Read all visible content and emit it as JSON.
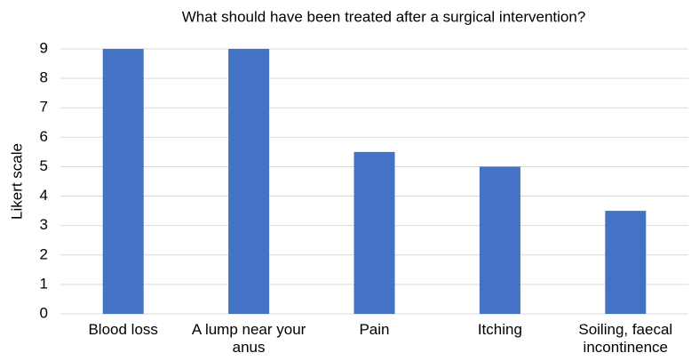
{
  "chart_data": {
    "type": "bar",
    "title": "What should have been treated after a surgical intervention?",
    "y_label": "Likert scale",
    "categories": [
      "Blood loss",
      "A lump near your anus",
      "Pain",
      "Itching",
      "Soiling, faecal incontinence"
    ],
    "values": [
      9,
      9,
      5.5,
      5,
      3.5
    ],
    "color": "#4472c4",
    "ylim": [
      0,
      9
    ],
    "yticks": [
      0,
      1,
      2,
      3,
      4,
      5,
      6,
      7,
      8,
      9
    ],
    "grid": true
  }
}
